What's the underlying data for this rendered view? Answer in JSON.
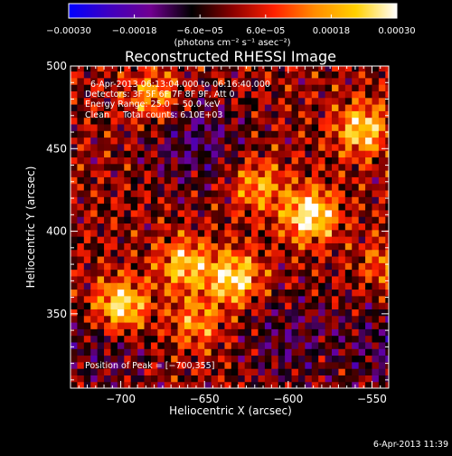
{
  "chart_data": {
    "type": "heatmap",
    "title": "Reconstructed RHESSI Image",
    "xlabel": "Heliocentric X (arcsec)",
    "ylabel": "Heliocentric Y (arcsec)",
    "xlim": [
      -730,
      -540
    ],
    "ylim": [
      305,
      500
    ],
    "x_ticks": [
      -700,
      -650,
      -600,
      -550
    ],
    "x_tick_labels": [
      "−700",
      "−650",
      "−600",
      "−550"
    ],
    "y_ticks": [
      350,
      400,
      450,
      500
    ],
    "y_tick_labels": [
      "350",
      "400",
      "450",
      "500"
    ],
    "colorbar": {
      "range": [
        -0.0003,
        0.0003
      ],
      "ticks": [
        -0.0003,
        -0.00018,
        -6e-05,
        6e-05,
        0.00018,
        0.0003
      ],
      "tick_labels": [
        "−0.00030",
        "−0.00018",
        "−6.0e−05",
        "6.0e−05",
        "0.00018",
        "0.00030"
      ],
      "units_label": "(photons cm⁻² s⁻¹ asec⁻²)",
      "colormap": [
        "#0000ff",
        "#4000c0",
        "#700090",
        "#000000",
        "#8b0000",
        "#ff2000",
        "#ff8c00",
        "#ffd000",
        "#ffffff"
      ]
    },
    "annotations": [
      "6-Apr-2013 06:13:04.000 to 06:16:40.000",
      "Detectors: 3F 5F 6F 7F 8F 9F, Att 0",
      "Energy Range: 25.0 − 50.0 keV",
      "Clean     Total counts: 6.10E+03",
      "Position of Peak = [−700,355]"
    ],
    "peak_position": [
      -700,
      355
    ],
    "bright_sources": [
      {
        "x": -587,
        "y": 410,
        "value": 0.0003
      },
      {
        "x": -700,
        "y": 355,
        "value": 0.0003
      },
      {
        "x": -632,
        "y": 372,
        "value": 0.00027
      },
      {
        "x": -556,
        "y": 462,
        "value": 0.00024
      },
      {
        "x": -662,
        "y": 380,
        "value": 0.00022
      },
      {
        "x": -618,
        "y": 428,
        "value": 0.00018
      },
      {
        "x": -680,
        "y": 482,
        "value": 0.00018
      },
      {
        "x": -540,
        "y": 380,
        "value": 0.00014
      },
      {
        "x": -655,
        "y": 345,
        "value": 0.00016
      }
    ],
    "negative_regions": [
      {
        "x": -655,
        "y": 455,
        "value": -0.00012
      },
      {
        "x": -540,
        "y": 330,
        "value": -0.0001
      },
      {
        "x": -710,
        "y": 330,
        "value": -8e-05
      },
      {
        "x": -600,
        "y": 335,
        "value": -9e-05
      }
    ]
  },
  "footer": {
    "timestamp": "6-Apr-2013 11:39"
  }
}
